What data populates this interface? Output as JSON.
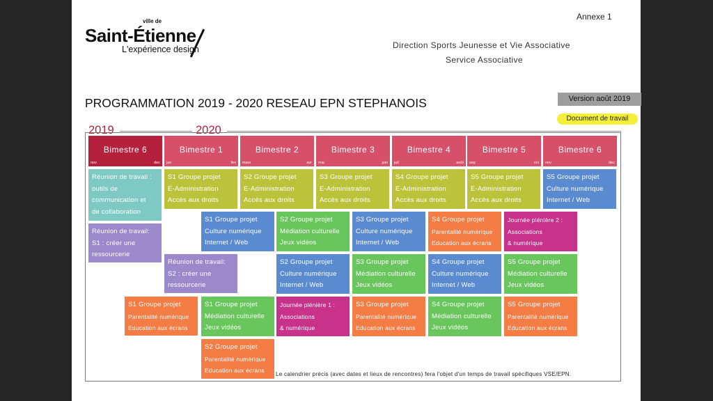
{
  "colors": {
    "bimestre_2019": "#b5203c",
    "bimestre_2020": "#d7506a",
    "teal": "#7ec9c4",
    "purple": "#9b89cc",
    "lime": "#bcc33a",
    "blue": "#5a8ad0",
    "green": "#69c65c",
    "orange": "#f47c45",
    "magenta": "#c8328a"
  },
  "header": {
    "annexe": "Annexe 1",
    "logo_ville": "ville de",
    "logo_name": "Saint-Étienne",
    "logo_tagline": "L'expérience design",
    "direction": "Direction Sports Jeunesse et Vie Associative",
    "service": "Service Associative",
    "title": "PROGRAMMATION 2019 - 2020 RESEAU EPN STEPHANOIS",
    "version": "Version août 2019",
    "document": "Document de travail"
  },
  "years": [
    "2019",
    "2020"
  ],
  "months": [
    {
      "label": "Bimestre 6",
      "start": "nov",
      "end": "dec"
    },
    {
      "label": "Bimestre 1",
      "start": "jan",
      "end": "fev"
    },
    {
      "label": "Bimestre 2",
      "start": "mars",
      "end": "avr"
    },
    {
      "label": "Bimestre 3",
      "start": "mai",
      "end": "juin"
    },
    {
      "label": "Bimestre 4",
      "start": "juil",
      "end": "août"
    },
    {
      "label": "Bimestre 5",
      "start": "sep",
      "end": "oct"
    },
    {
      "label": "Bimestre 6",
      "start": "nov",
      "end": "dec"
    }
  ],
  "cards": {
    "c1": [
      "Réunion de travail :",
      "outils de",
      "communication et",
      "de collaboration"
    ],
    "c2": [
      "Réunion de travail:",
      "S1 : créer une",
      "ressourcerie"
    ],
    "c3": [
      "Réunion de travail:",
      "S2 : créer une",
      "ressourcerie"
    ],
    "c4": [
      "S1 Groupe projet",
      "Parentalité numérique",
      "Education aux écrans"
    ],
    "e1": [
      "S1 Groupe projet",
      "E-Administration",
      "Accès aux droits"
    ],
    "e2": [
      "S2 Groupe projet",
      "E-Administration",
      "Accès aux droits"
    ],
    "e3": [
      "S3 Groupe projet",
      "E-Administration",
      "Accès aux droits"
    ],
    "e4": [
      "S4 Groupe projet",
      "E-Administration",
      "Accès aux droits"
    ],
    "e5": [
      "S5 Groupe projet",
      "E-Administration",
      "Accès aux droits"
    ],
    "w5": [
      "S5 Groupe projet",
      "Culture numérique",
      "Internet / Web"
    ],
    "w1": [
      "S1 Groupe projet",
      "Culture numérique",
      "Internet / Web"
    ],
    "m2": [
      "S2 Groupe projet",
      "Médiation culturelle",
      "Jeux vidéos"
    ],
    "w3": [
      "S3 Groupe projet",
      "Culture numérique",
      "Internet / Web"
    ],
    "p4": [
      "S4 Groupe projet",
      "Parentalité numérique",
      "Education aux écrans"
    ],
    "j2": [
      "Journée plénière 2 :",
      "Associations",
      "& numérique"
    ],
    "w2": [
      "S2 Groupe projet",
      "Culture numérique",
      "Internet / Web"
    ],
    "m3": [
      "S3 Groupe projet",
      "Médiation culturelle",
      "Jeux vidéos"
    ],
    "w4": [
      "S4 Groupe projet",
      "Culture numérique",
      "Internet / Web"
    ],
    "m5": [
      "S5 Groupe projet",
      "Médiation culturelle",
      "Jeux vidéos"
    ],
    "m1": [
      "S1 Groupe projet",
      "Médiation culturelle",
      "Jeux vidéos"
    ],
    "j1": [
      "Journée plénière 1 :",
      "Associations",
      "& numérique"
    ],
    "p3": [
      "S3 Groupe projet",
      "Parentalité numérique",
      "Education aux écrans"
    ],
    "m4": [
      "S4 Groupe projet",
      "Médiation culturelle",
      "Jeux vidéos"
    ],
    "p5": [
      "S5 Groupe projet",
      "Parentalité numérique",
      "Education aux écrans"
    ],
    "p2": [
      "S2 Groupe projet",
      "Parentalité numérique",
      "Education aux écrans"
    ]
  },
  "footnote": "Le calendrier précis (avec dates et lieux de rencontres) fera l'objet d'un temps de travail spécifiques VSE/EPN."
}
